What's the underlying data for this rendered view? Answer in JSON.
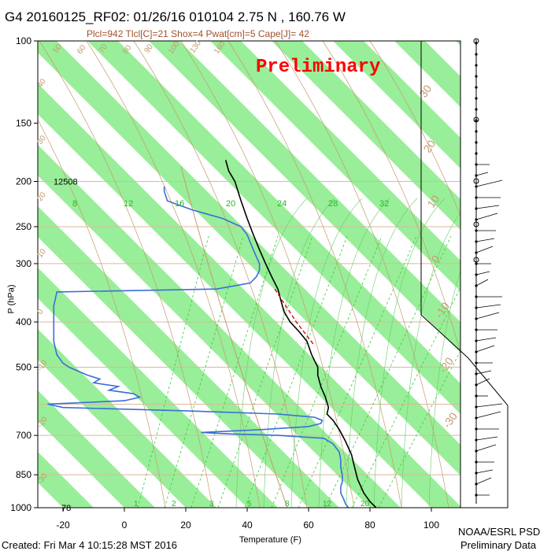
{
  "header": {
    "title": "G4 20160125_RF02: 01/26/16 010104   2.75 N , 160.76 W",
    "indices": "Plcl=942 Tlcl[C]=21 Shox=4 Pwat[cm]=5 Cape[J]= 42",
    "watermark": "Preliminary"
  },
  "footer": {
    "created": "Created: Fri Mar  4 10:15:28 MST 2016",
    "credit_line1": "NOAA/ESRL PSD",
    "credit_line2": "Preliminary Data"
  },
  "chart_data": {
    "type": "line",
    "xlabel": "Temperature (F)",
    "ylabel": "P (hPa)",
    "xlim": [
      -30,
      100
    ],
    "pressure_ticks": [
      100,
      150,
      200,
      250,
      300,
      400,
      500,
      700,
      850,
      1000
    ],
    "temperature_ticks": [
      -20,
      0,
      20,
      40,
      60,
      80,
      100
    ],
    "annotations": [
      {
        "text": "12508",
        "p": 200
      },
      {
        "text": "78",
        "p": 1000
      }
    ],
    "mixing_ratio_labels_upper": [
      "8",
      "12",
      "16",
      "20",
      "24",
      "28",
      "32"
    ],
    "mixing_ratio_labels_lower": [
      "1",
      "2",
      "3",
      "5",
      "8",
      "12",
      "20"
    ],
    "isotherm_labels_left": [
      "40",
      "30",
      "20",
      "10",
      "0",
      "-10",
      "-20",
      "-30"
    ],
    "isotherm_labels_top": [
      "50",
      "60",
      "70",
      "80",
      "90",
      "100",
      "130",
      "160"
    ],
    "dry_adiabat_labels_right": [
      "30",
      "20",
      "10",
      "0",
      "-10",
      "-20",
      "-30"
    ],
    "series": [
      {
        "role": "temperature",
        "color": "#000000",
        "points": [
          [
            1000,
            82
          ],
          [
            970,
            80
          ],
          [
            930,
            78
          ],
          [
            870,
            76
          ],
          [
            820,
            75
          ],
          [
            770,
            74
          ],
          [
            720,
            72
          ],
          [
            680,
            70
          ],
          [
            650,
            68
          ],
          [
            630,
            66
          ],
          [
            610,
            66.5
          ],
          [
            580,
            65.5
          ],
          [
            550,
            64
          ],
          [
            520,
            63
          ],
          [
            500,
            63
          ],
          [
            470,
            61
          ],
          [
            440,
            59.5
          ],
          [
            420,
            57
          ],
          [
            400,
            54
          ],
          [
            380,
            52
          ],
          [
            360,
            51
          ],
          [
            340,
            50
          ],
          [
            320,
            48
          ],
          [
            300,
            46
          ],
          [
            280,
            44
          ],
          [
            260,
            42
          ],
          [
            240,
            40
          ],
          [
            220,
            38
          ],
          [
            200,
            36
          ],
          [
            190,
            34
          ],
          [
            180,
            33
          ]
        ]
      },
      {
        "role": "dewpoint",
        "color": "#3a6fd8",
        "points": [
          [
            1000,
            73
          ],
          [
            980,
            72
          ],
          [
            960,
            71.5
          ],
          [
            930,
            70.5
          ],
          [
            900,
            70.5
          ],
          [
            880,
            71
          ],
          [
            850,
            71
          ],
          [
            820,
            70.5
          ],
          [
            790,
            70.5
          ],
          [
            760,
            70
          ],
          [
            730,
            68
          ],
          [
            710,
            65
          ],
          [
            700,
            50
          ],
          [
            695,
            35
          ],
          [
            690,
            25
          ],
          [
            680,
            45
          ],
          [
            670,
            60
          ],
          [
            660,
            64
          ],
          [
            650,
            64.5
          ],
          [
            640,
            62
          ],
          [
            630,
            50
          ],
          [
            620,
            20
          ],
          [
            610,
            -20
          ],
          [
            600,
            -25
          ],
          [
            590,
            0
          ],
          [
            580,
            5
          ],
          [
            570,
            3
          ],
          [
            560,
            -5
          ],
          [
            550,
            -2
          ],
          [
            540,
            -10
          ],
          [
            530,
            -8
          ],
          [
            520,
            -12
          ],
          [
            510,
            -15
          ],
          [
            500,
            -18
          ],
          [
            490,
            -20
          ],
          [
            470,
            -22
          ],
          [
            440,
            -23
          ],
          [
            400,
            -23
          ],
          [
            370,
            -23
          ],
          [
            345,
            -22
          ],
          [
            340,
            30
          ],
          [
            330,
            41
          ],
          [
            320,
            43
          ],
          [
            310,
            44
          ],
          [
            300,
            44
          ],
          [
            290,
            43
          ],
          [
            280,
            42
          ],
          [
            270,
            41
          ],
          [
            260,
            40
          ],
          [
            250,
            38
          ],
          [
            240,
            32
          ],
          [
            230,
            22
          ],
          [
            220,
            14
          ],
          [
            210,
            13
          ],
          [
            205,
            13
          ]
        ]
      },
      {
        "role": "parcel",
        "color": "#cc0000",
        "points": [
          [
            340,
            49
          ],
          [
            400,
            56
          ],
          [
            450,
            62
          ]
        ]
      }
    ]
  }
}
